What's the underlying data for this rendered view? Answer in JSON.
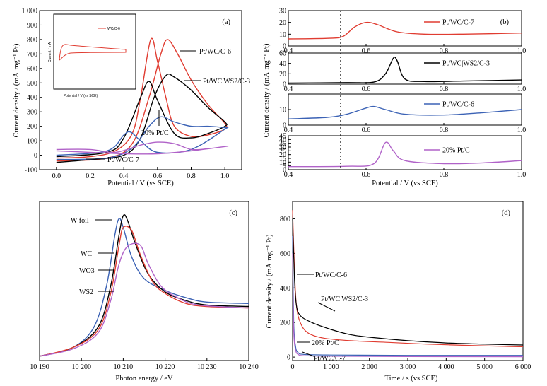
{
  "colors": {
    "red": "#e03c31",
    "black": "#000000",
    "blue": "#3b62b5",
    "purple": "#b062c8"
  },
  "chart_data": [
    {
      "id": "a",
      "type": "line",
      "panel_label": "(a)",
      "xlabel": "Potential / V (vs SCE)",
      "ylabel": "Current density / (mA·mg⁻¹ Pt)",
      "xlim": [
        -0.1,
        1.1
      ],
      "ylim": [
        -100,
        1000
      ],
      "xticks": [
        "0.0",
        "0.2",
        "0.4",
        "0.6",
        "0.8",
        "1.0"
      ],
      "yticks": [
        "-100",
        "0",
        "100",
        "200",
        "300",
        "400",
        "500",
        "600",
        "700",
        "800",
        "900",
        "1 000"
      ],
      "annotations": [
        "Pt/WC/C-6",
        "Pt/WC|WS2/C-3",
        "20% Pt/C",
        "Pt/WC/C-7"
      ],
      "series": [
        {
          "name": "Pt/WC/C-7",
          "color": "red",
          "forward": [
            [
              0.0,
              -20
            ],
            [
              0.2,
              -10
            ],
            [
              0.35,
              30
            ],
            [
              0.45,
              150
            ],
            [
              0.5,
              400
            ],
            [
              0.56,
              800
            ],
            [
              0.6,
              650
            ],
            [
              0.65,
              400
            ],
            [
              0.7,
              200
            ],
            [
              0.8,
              130
            ],
            [
              0.9,
              140
            ],
            [
              1.0,
              180
            ]
          ],
          "backward": [
            [
              1.0,
              220
            ],
            [
              0.9,
              350
            ],
            [
              0.8,
              520
            ],
            [
              0.72,
              700
            ],
            [
              0.66,
              800
            ],
            [
              0.62,
              700
            ],
            [
              0.55,
              400
            ],
            [
              0.45,
              80
            ],
            [
              0.3,
              -20
            ],
            [
              0.0,
              -40
            ]
          ]
        },
        {
          "name": "Pt/WC|WS2/C-3",
          "color": "black",
          "forward": [
            [
              0.0,
              -10
            ],
            [
              0.3,
              20
            ],
            [
              0.4,
              120
            ],
            [
              0.5,
              400
            ],
            [
              0.55,
              510
            ],
            [
              0.6,
              380
            ],
            [
              0.7,
              150
            ],
            [
              0.8,
              120
            ],
            [
              0.9,
              150
            ],
            [
              1.0,
              200
            ]
          ],
          "backward": [
            [
              1.0,
              230
            ],
            [
              0.9,
              330
            ],
            [
              0.8,
              450
            ],
            [
              0.7,
              540
            ],
            [
              0.65,
              550
            ],
            [
              0.58,
              400
            ],
            [
              0.5,
              120
            ],
            [
              0.4,
              0
            ],
            [
              0.2,
              -30
            ],
            [
              0.0,
              -50
            ]
          ]
        },
        {
          "name": "Pt/WC/C-6",
          "color": "blue",
          "forward": [
            [
              0.0,
              0
            ],
            [
              0.3,
              30
            ],
            [
              0.4,
              140
            ],
            [
              0.44,
              160
            ],
            [
              0.5,
              100
            ],
            [
              0.6,
              20
            ],
            [
              0.8,
              40
            ],
            [
              1.0,
              180
            ]
          ],
          "backward": [
            [
              1.0,
              190
            ],
            [
              0.9,
              200
            ],
            [
              0.8,
              200
            ],
            [
              0.7,
              230
            ],
            [
              0.62,
              265
            ],
            [
              0.55,
              200
            ],
            [
              0.45,
              50
            ],
            [
              0.3,
              -20
            ],
            [
              0.0,
              -30
            ]
          ]
        },
        {
          "name": "20% Pt/C",
          "color": "purple",
          "forward": [
            [
              0.0,
              40
            ],
            [
              0.2,
              40
            ],
            [
              0.35,
              20
            ],
            [
              0.5,
              70
            ],
            [
              0.6,
              90
            ],
            [
              0.7,
              80
            ],
            [
              0.8,
              40
            ],
            [
              0.9,
              45
            ],
            [
              1.0,
              60
            ]
          ],
          "backward": [
            [
              1.0,
              60
            ],
            [
              0.8,
              30
            ],
            [
              0.6,
              10
            ],
            [
              0.4,
              10
            ],
            [
              0.2,
              20
            ],
            [
              0.0,
              30
            ]
          ]
        }
      ]
    },
    {
      "id": "b",
      "type": "line",
      "panel_label": "(b)",
      "xlabel": "Potential / V (vs SCE)",
      "ylabel": "Current density / (mA·mg⁻¹ Pt)",
      "xticks": [
        "0.4",
        "0.6",
        "0.8",
        "1.0"
      ],
      "xlim": [
        0.4,
        1.0
      ],
      "dotted_line_x": 0.53,
      "subplots": [
        {
          "name": "Pt/WC/C-7",
          "color": "red",
          "ylim": [
            0,
            30
          ],
          "yticks": [
            "0",
            "10",
            "20",
            "30"
          ],
          "points": [
            [
              0.4,
              6
            ],
            [
              0.5,
              6.5
            ],
            [
              0.54,
              8
            ],
            [
              0.57,
              16
            ],
            [
              0.6,
              20
            ],
            [
              0.63,
              18
            ],
            [
              0.68,
              12
            ],
            [
              0.75,
              10
            ],
            [
              0.85,
              10
            ],
            [
              1.0,
              11
            ]
          ]
        },
        {
          "name": "Pt/WC|WS2/C-3",
          "color": "black",
          "ylim": [
            0,
            60
          ],
          "yticks": [
            "0",
            "20",
            "40",
            "60"
          ],
          "points": [
            [
              0.4,
              2
            ],
            [
              0.55,
              3
            ],
            [
              0.62,
              4
            ],
            [
              0.65,
              20
            ],
            [
              0.67,
              50
            ],
            [
              0.68,
              45
            ],
            [
              0.7,
              10
            ],
            [
              0.75,
              5
            ],
            [
              0.85,
              6
            ],
            [
              1.0,
              8
            ]
          ]
        },
        {
          "name": "Pt/WC/C-6",
          "color": "blue",
          "ylim": [
            0,
            20
          ],
          "yticks": [
            "0",
            "10"
          ],
          "points": [
            [
              0.4,
              4
            ],
            [
              0.5,
              5
            ],
            [
              0.55,
              7
            ],
            [
              0.6,
              11
            ],
            [
              0.62,
              12
            ],
            [
              0.65,
              10
            ],
            [
              0.7,
              7
            ],
            [
              0.8,
              6.5
            ],
            [
              0.9,
              8
            ],
            [
              1.0,
              10
            ]
          ]
        },
        {
          "name": "20% Pt/C",
          "color": "purple",
          "ylim": [
            0,
            45
          ],
          "yticks": [
            "0",
            "5",
            "10",
            "15",
            "20",
            "25",
            "30",
            "35",
            "40",
            "45"
          ],
          "points": [
            [
              0.4,
              4
            ],
            [
              0.55,
              4.5
            ],
            [
              0.62,
              8
            ],
            [
              0.65,
              36
            ],
            [
              0.67,
              25
            ],
            [
              0.7,
              12
            ],
            [
              0.8,
              8
            ],
            [
              0.9,
              9
            ],
            [
              1.0,
              12
            ]
          ]
        }
      ]
    },
    {
      "id": "c",
      "type": "line",
      "panel_label": "(c)",
      "xlabel": "Photon energy / eV",
      "xlim": [
        10190,
        10240
      ],
      "xticks": [
        "10 190",
        "10 200",
        "10 210",
        "10 220",
        "10 230",
        "10 240"
      ],
      "annotations": [
        "W foil",
        "WC",
        "WO3",
        "WS2"
      ],
      "series": [
        {
          "name": "W foil",
          "color": "blue",
          "points": [
            [
              10190,
              0.02
            ],
            [
              10198,
              0.08
            ],
            [
              10203,
              0.22
            ],
            [
              10206,
              0.5
            ],
            [
              10208,
              0.85
            ],
            [
              10209,
              0.96
            ],
            [
              10210,
              0.9
            ],
            [
              10212,
              0.7
            ],
            [
              10215,
              0.55
            ],
            [
              10220,
              0.47
            ],
            [
              10225,
              0.42
            ],
            [
              10230,
              0.39
            ],
            [
              10240,
              0.38
            ]
          ]
        },
        {
          "name": "WC",
          "color": "black",
          "points": [
            [
              10190,
              0.02
            ],
            [
              10198,
              0.08
            ],
            [
              10204,
              0.22
            ],
            [
              10207,
              0.5
            ],
            [
              10209,
              0.85
            ],
            [
              10210,
              0.98
            ],
            [
              10211,
              0.95
            ],
            [
              10213,
              0.78
            ],
            [
              10216,
              0.58
            ],
            [
              10220,
              0.46
            ],
            [
              10225,
              0.4
            ],
            [
              10230,
              0.37
            ],
            [
              10240,
              0.36
            ]
          ]
        },
        {
          "name": "WO3",
          "color": "red",
          "points": [
            [
              10190,
              0.02
            ],
            [
              10198,
              0.08
            ],
            [
              10204,
              0.2
            ],
            [
              10207,
              0.45
            ],
            [
              10209,
              0.78
            ],
            [
              10210,
              0.9
            ],
            [
              10212,
              0.88
            ],
            [
              10214,
              0.72
            ],
            [
              10217,
              0.53
            ],
            [
              10220,
              0.45
            ],
            [
              10225,
              0.38
            ],
            [
              10230,
              0.36
            ],
            [
              10240,
              0.35
            ]
          ]
        },
        {
          "name": "WS2",
          "color": "purple",
          "points": [
            [
              10190,
              0.02
            ],
            [
              10198,
              0.07
            ],
            [
              10204,
              0.18
            ],
            [
              10207,
              0.4
            ],
            [
              10209,
              0.65
            ],
            [
              10211,
              0.77
            ],
            [
              10214,
              0.78
            ],
            [
              10216,
              0.65
            ],
            [
              10219,
              0.5
            ],
            [
              10223,
              0.42
            ],
            [
              10228,
              0.37
            ],
            [
              10240,
              0.35
            ]
          ]
        }
      ]
    },
    {
      "id": "d",
      "type": "line",
      "panel_label": "(d)",
      "xlabel": "Time / s (vs SCE)",
      "ylabel": "Current density / (mA·mg⁻¹ Pt)",
      "xlim": [
        0,
        6000
      ],
      "ylim": [
        -20,
        900
      ],
      "xticks": [
        "0",
        "1 000",
        "2 000",
        "3 000",
        "4 000",
        "5 000",
        "6 000"
      ],
      "yticks": [
        "0",
        "200",
        "400",
        "600",
        "800"
      ],
      "annotations": [
        "Pt/WC/C-6",
        "Pt/WC|WS2/C-3",
        "20% Pt/C",
        "Pt/WC/C-7"
      ],
      "series": [
        {
          "name": "Pt/WC/C-7",
          "color": "red",
          "points": [
            [
              0,
              850
            ],
            [
              50,
              500
            ],
            [
              100,
              300
            ],
            [
              200,
              200
            ],
            [
              400,
              140
            ],
            [
              800,
              110
            ],
            [
              1500,
              95
            ],
            [
              2500,
              85
            ],
            [
              3500,
              75
            ],
            [
              4500,
              68
            ],
            [
              5500,
              62
            ],
            [
              6000,
              60
            ]
          ]
        },
        {
          "name": "Pt/WC|WS2/C-3",
          "color": "black",
          "points": [
            [
              0,
              800
            ],
            [
              50,
              450
            ],
            [
              100,
              300
            ],
            [
              200,
              240
            ],
            [
              500,
              200
            ],
            [
              1000,
              160
            ],
            [
              1500,
              130
            ],
            [
              2000,
              115
            ],
            [
              3000,
              95
            ],
            [
              4000,
              82
            ],
            [
              5000,
              75
            ],
            [
              6000,
              70
            ]
          ]
        },
        {
          "name": "Pt/WC/C-6",
          "color": "blue",
          "points": [
            [
              0,
              700
            ],
            [
              30,
              200
            ],
            [
              80,
              60
            ],
            [
              150,
              25
            ],
            [
              300,
              15
            ],
            [
              1000,
              12
            ],
            [
              3000,
              10
            ],
            [
              6000,
              10
            ]
          ]
        },
        {
          "name": "20% Pt/C",
          "color": "purple",
          "points": [
            [
              0,
              600
            ],
            [
              30,
              150
            ],
            [
              80,
              40
            ],
            [
              150,
              15
            ],
            [
              300,
              8
            ],
            [
              1000,
              5
            ],
            [
              3000,
              3
            ],
            [
              6000,
              2
            ]
          ]
        }
      ]
    }
  ]
}
